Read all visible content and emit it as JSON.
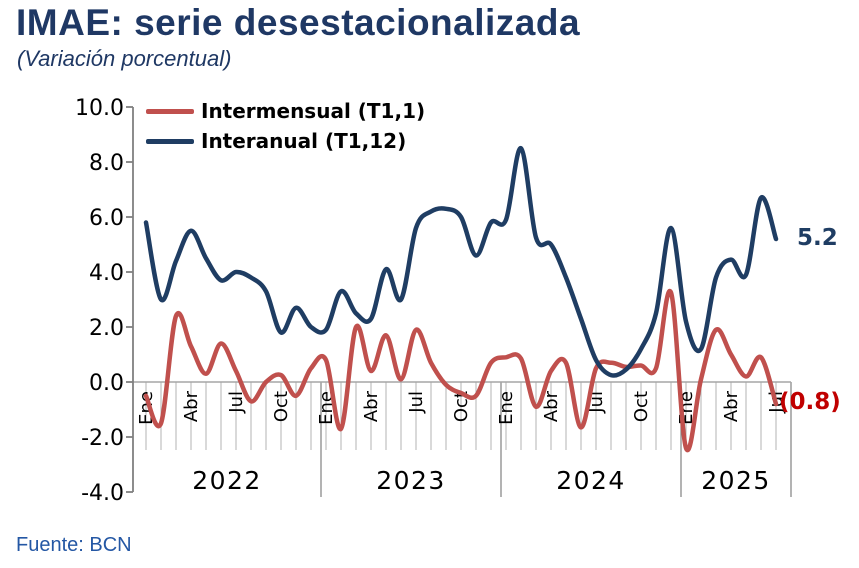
{
  "header": {
    "title": "IMAE: serie desestacionalizada",
    "subtitle": "(Variación porcentual)"
  },
  "footer": {
    "source": "Fuente: BCN"
  },
  "colors": {
    "title_blue": "#1F3864",
    "interanual_blue": "#1F3D63",
    "intermensual_red": "#C0504D",
    "end_label_red": "#C00000",
    "source_blue": "#2457A4",
    "axis_gray": "#808080",
    "minor_tick_gray": "#B3B3B3",
    "zero_line_gray": "#A6A6A6"
  },
  "chart_data": {
    "type": "line",
    "title": "IMAE: serie desestacionalizada",
    "subtitle": "(Variación porcentual)",
    "x_start": "Ene 2022",
    "x_end": "Jul 2025",
    "x_frequency": "monthly",
    "ylim": [
      -4,
      10
    ],
    "grid": false,
    "legend_position": "top-left",
    "y_ticks": [
      "10.0",
      "8.0",
      "6.0",
      "4.0",
      "2.0",
      "0.0",
      "-2.0",
      "-4.0"
    ],
    "month_tick_every": 3,
    "month_tick_labels": [
      "Ene",
      "Abr",
      "Jul",
      "Oct",
      "Ene",
      "Abr",
      "Jul",
      "Oct",
      "Ene",
      "Abr",
      "Jul",
      "Oct",
      "Ene",
      "Abr",
      "Jul"
    ],
    "years": [
      "2022",
      "2023",
      "2024",
      "2025"
    ],
    "series": [
      {
        "name": "Intermensual (T1,1)",
        "color": "#C0504D",
        "values": [
          -0.5,
          -1.5,
          2.4,
          1.3,
          0.3,
          1.4,
          0.4,
          -0.7,
          0.0,
          0.25,
          -0.5,
          0.5,
          0.8,
          -1.7,
          2.0,
          0.4,
          1.7,
          0.1,
          1.9,
          0.7,
          -0.1,
          -0.4,
          -0.5,
          0.7,
          0.9,
          0.85,
          -0.9,
          0.4,
          0.7,
          -1.65,
          0.5,
          0.7,
          0.55,
          0.6,
          0.5,
          3.25,
          -2.4,
          0.1,
          1.9,
          1.0,
          0.2,
          0.9,
          -0.8
        ]
      },
      {
        "name": "Interanual (T1,12)",
        "color": "#1F3D63",
        "values": [
          5.8,
          3.0,
          4.4,
          5.5,
          4.5,
          3.7,
          4.0,
          3.8,
          3.3,
          1.8,
          2.7,
          2.0,
          1.9,
          3.3,
          2.5,
          2.3,
          4.1,
          3.0,
          5.6,
          6.2,
          6.3,
          6.0,
          4.6,
          5.8,
          5.9,
          8.5,
          5.25,
          5.0,
          3.8,
          2.3,
          0.8,
          0.25,
          0.45,
          1.2,
          2.5,
          5.6,
          2.2,
          1.2,
          3.8,
          4.45,
          3.9,
          6.7,
          5.2
        ]
      }
    ],
    "end_labels": [
      {
        "series": "Interanual (T1,12)",
        "text": "5.2",
        "value": 5.2,
        "color": "#1F3D63"
      },
      {
        "series": "Intermensual (T1,1)",
        "text": "(0.8)",
        "value": -0.8,
        "color": "#C00000"
      }
    ]
  }
}
